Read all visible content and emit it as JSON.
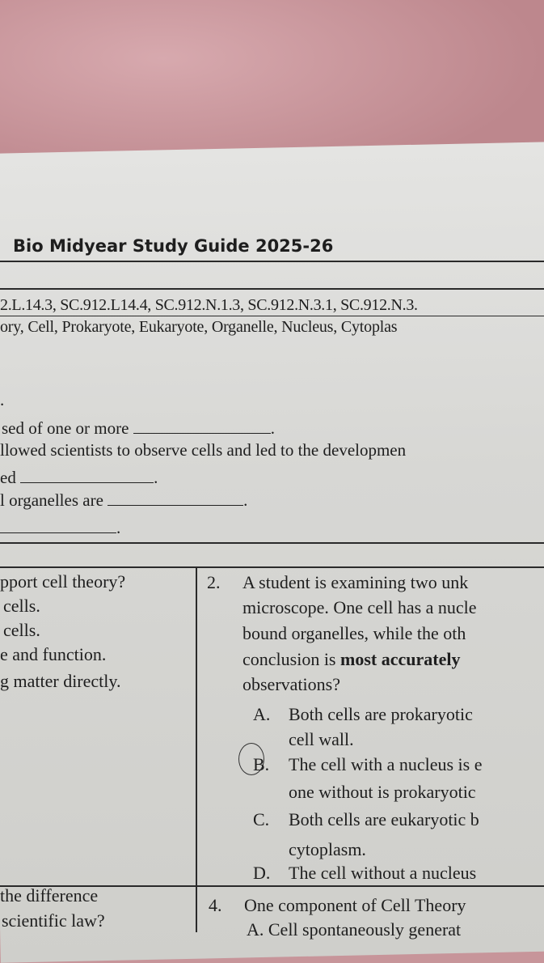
{
  "title": "Bio Midyear Study Guide 2025-26",
  "standards": "2.L.14.3, SC.912.L14.4, SC.912.N.1.3, SC.912.N.3.1, SC.912.N.3.",
  "vocabulary": "ory, Cell, Prokaryote, Eukaryote, Organelle, Nucleus, Cytoplas",
  "fill_in": {
    "bullet": ".",
    "line1": "sed of one or more",
    "line2": "llowed scientists to observe cells and led to the developmen",
    "line3": "ed",
    "line4": "l organelles are",
    "period": "."
  },
  "left_column": {
    "q1_lines": [
      "pport cell theory?",
      "cells.",
      "cells.",
      "e and function.",
      "g matter directly."
    ],
    "q3_lines": [
      "the difference",
      "scientific law?"
    ]
  },
  "question2": {
    "number": "2.",
    "stem_lines": [
      "A student is examining two unk",
      "microscope. One cell has a nucle",
      "bound organelles, while the oth"
    ],
    "stem_line4_pre": "conclusion is ",
    "stem_line4_bold": "most accurately",
    "stem_line5": "observations?",
    "options": [
      {
        "letter": "A.",
        "lines": [
          "Both cells are prokaryotic",
          "cell wall."
        ]
      },
      {
        "letter": "B.",
        "lines": [
          "The cell with a nucleus is e",
          "one without is prokaryotic"
        ],
        "circled": true
      },
      {
        "letter": "C.",
        "lines": [
          "Both cells are eukaryotic b",
          "cytoplasm."
        ]
      },
      {
        "letter": "D.",
        "lines": [
          "The cell without a nucleus"
        ]
      }
    ]
  },
  "question4": {
    "number": "4.",
    "stem": "One component of Cell Theory",
    "option_a": "A.   Cell spontaneously generat"
  }
}
